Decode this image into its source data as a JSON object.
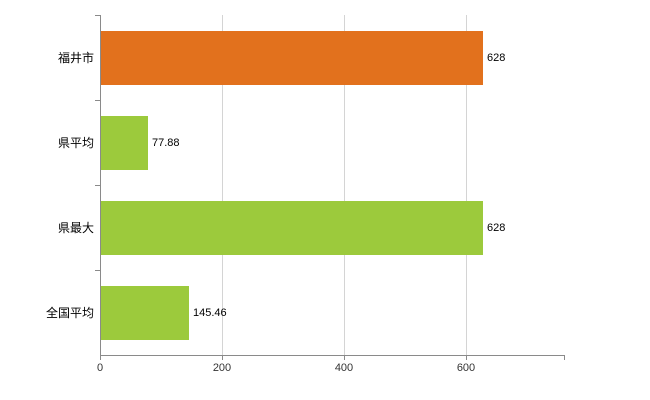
{
  "chart_data": {
    "type": "bar",
    "orientation": "horizontal",
    "title": "",
    "xlabel": "",
    "ylabel": "",
    "categories": [
      "福井市",
      "県平均",
      "県最大",
      "全国平均"
    ],
    "values": [
      628,
      77.88,
      628,
      145.46
    ],
    "value_labels": [
      "628",
      "77.88",
      "628",
      "145.46"
    ],
    "bar_colors": [
      "#e2711d",
      "#9cca3c",
      "#9cca3c",
      "#9cca3c"
    ],
    "xlim": [
      0,
      760
    ],
    "xticks": [
      0,
      200,
      400,
      600
    ],
    "xtick_labels": [
      "0",
      "200",
      "400",
      "600"
    ],
    "grid": "vertical",
    "legend": "none",
    "background": "#ffffff"
  },
  "style_colors": {
    "axis": "#8a8a8a",
    "gridline": "#d4d4d4",
    "text": "#000000",
    "tick_text": "#333333"
  }
}
